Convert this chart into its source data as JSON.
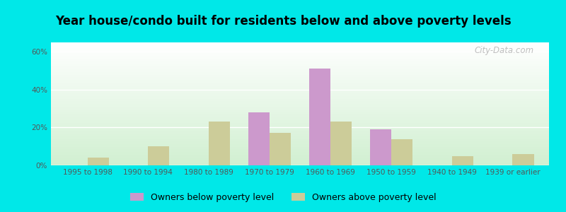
{
  "title": "Year house/condo built for residents below and above poverty levels",
  "categories": [
    "1995 to 1998",
    "1990 to 1994",
    "1980 to 1989",
    "1970 to 1979",
    "1960 to 1969",
    "1950 to 1959",
    "1940 to 1949",
    "1939 or earlier"
  ],
  "below_poverty": [
    0,
    0,
    0,
    28,
    51,
    19,
    0,
    0
  ],
  "above_poverty": [
    4,
    10,
    23,
    17,
    23,
    14,
    5,
    6
  ],
  "below_color": "#cc99cc",
  "above_color": "#cccc99",
  "ylabel_ticks": [
    0,
    20,
    40,
    60
  ],
  "ylabel_labels": [
    "0%",
    "20%",
    "40%",
    "60%"
  ],
  "ylim": [
    0,
    65
  ],
  "background_outer": "#00e8e8",
  "legend_below": "Owners below poverty level",
  "legend_above": "Owners above poverty level",
  "watermark": "City-Data.com",
  "bar_width": 0.35,
  "title_fontsize": 12,
  "tick_fontsize": 7.5,
  "legend_fontsize": 9
}
